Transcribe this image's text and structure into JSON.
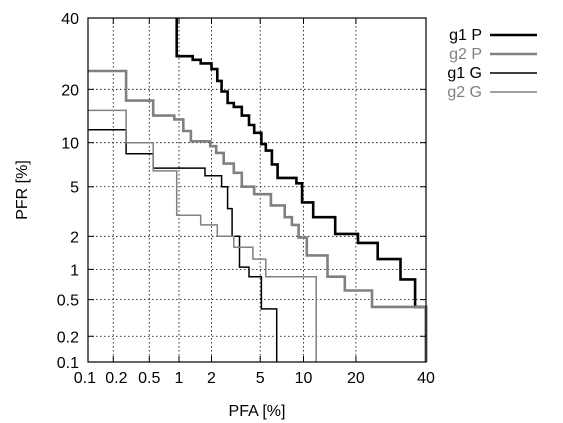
{
  "chart_data": {
    "type": "line",
    "xscale": "normal-deviate",
    "yscale": "normal-deviate",
    "xlabel": "PFA [%]",
    "ylabel": "PFR [%]",
    "xlim": [
      0.1,
      40
    ],
    "ylim": [
      0.1,
      40
    ],
    "xticks": [
      {
        "value": 0.1,
        "label": "0.1"
      },
      {
        "value": 0.2,
        "label": "0.2"
      },
      {
        "value": 0.5,
        "label": "0.5"
      },
      {
        "value": 1,
        "label": "1"
      },
      {
        "value": 2,
        "label": "2"
      },
      {
        "value": 5,
        "label": "5"
      },
      {
        "value": 10,
        "label": "10"
      },
      {
        "value": 20,
        "label": "20"
      },
      {
        "value": 40,
        "label": "40"
      }
    ],
    "yticks": [
      {
        "value": 0.1,
        "label": "0.1"
      },
      {
        "value": 0.2,
        "label": "0.2"
      },
      {
        "value": 0.5,
        "label": "0.5"
      },
      {
        "value": 1,
        "label": "1"
      },
      {
        "value": 2,
        "label": "2"
      },
      {
        "value": 5,
        "label": "5"
      },
      {
        "value": 10,
        "label": "10"
      },
      {
        "value": 20,
        "label": "20"
      },
      {
        "value": 40,
        "label": "40"
      }
    ],
    "grid": true,
    "legend_position": "outside-right",
    "series": [
      {
        "name": "g1 P",
        "color": "#000000",
        "weight": "thick",
        "points": [
          [
            0.95,
            40
          ],
          [
            0.95,
            28.5
          ],
          [
            1.35,
            28.5
          ],
          [
            1.35,
            27.5
          ],
          [
            1.6,
            27.5
          ],
          [
            1.6,
            26.5
          ],
          [
            2.0,
            26.5
          ],
          [
            2.0,
            25.0
          ],
          [
            2.25,
            25.0
          ],
          [
            2.25,
            22.0
          ],
          [
            2.45,
            22.0
          ],
          [
            2.45,
            19.5
          ],
          [
            2.75,
            19.5
          ],
          [
            2.75,
            17.0
          ],
          [
            3.1,
            17.0
          ],
          [
            3.1,
            16.2
          ],
          [
            3.6,
            16.2
          ],
          [
            3.6,
            14.5
          ],
          [
            4.1,
            14.5
          ],
          [
            4.1,
            12.8
          ],
          [
            4.5,
            12.8
          ],
          [
            4.5,
            11.5
          ],
          [
            5.1,
            11.5
          ],
          [
            5.1,
            9.8
          ],
          [
            5.5,
            9.8
          ],
          [
            5.5,
            8.9
          ],
          [
            6.1,
            8.9
          ],
          [
            6.1,
            7.2
          ],
          [
            6.7,
            7.2
          ],
          [
            6.7,
            5.8
          ],
          [
            9.0,
            5.8
          ],
          [
            9.0,
            5.3
          ],
          [
            9.8,
            5.3
          ],
          [
            9.8,
            3.8
          ],
          [
            11.5,
            3.8
          ],
          [
            11.5,
            2.9
          ],
          [
            15.5,
            2.9
          ],
          [
            15.5,
            2.1
          ],
          [
            20.5,
            2.1
          ],
          [
            20.5,
            1.75
          ],
          [
            25.5,
            1.75
          ],
          [
            25.5,
            1.25
          ],
          [
            32.0,
            1.25
          ],
          [
            32.0,
            0.8
          ],
          [
            36.5,
            0.8
          ],
          [
            36.5,
            0.42
          ],
          [
            40,
            0.42
          ],
          [
            40,
            0.1
          ]
        ]
      },
      {
        "name": "g2 P",
        "color": "#808080",
        "weight": "thick",
        "points": [
          [
            0.1,
            24.5
          ],
          [
            0.28,
            24.5
          ],
          [
            0.28,
            17.5
          ],
          [
            0.55,
            17.5
          ],
          [
            0.55,
            14.5
          ],
          [
            0.9,
            14.5
          ],
          [
            0.9,
            13.8
          ],
          [
            1.1,
            13.8
          ],
          [
            1.1,
            11.8
          ],
          [
            1.3,
            11.8
          ],
          [
            1.3,
            10.2
          ],
          [
            1.95,
            10.2
          ],
          [
            1.95,
            9.5
          ],
          [
            2.2,
            9.5
          ],
          [
            2.2,
            8.6
          ],
          [
            2.55,
            8.6
          ],
          [
            2.55,
            7.3
          ],
          [
            3.1,
            7.3
          ],
          [
            3.1,
            6.3
          ],
          [
            3.6,
            6.3
          ],
          [
            3.6,
            5.0
          ],
          [
            4.5,
            5.0
          ],
          [
            4.5,
            4.4
          ],
          [
            6.0,
            4.4
          ],
          [
            6.0,
            3.6
          ],
          [
            7.5,
            3.6
          ],
          [
            7.5,
            2.9
          ],
          [
            8.4,
            2.9
          ],
          [
            8.4,
            2.5
          ],
          [
            9.3,
            2.5
          ],
          [
            9.3,
            1.95
          ],
          [
            10.5,
            1.95
          ],
          [
            10.5,
            1.35
          ],
          [
            14.0,
            1.35
          ],
          [
            14.0,
            0.85
          ],
          [
            17.5,
            0.85
          ],
          [
            17.5,
            0.62
          ],
          [
            24.0,
            0.62
          ],
          [
            24.0,
            0.42
          ],
          [
            40,
            0.42
          ],
          [
            40,
            0.1
          ]
        ]
      },
      {
        "name": "g1 G",
        "color": "#000000",
        "weight": "thin",
        "points": [
          [
            0.1,
            12.0
          ],
          [
            0.28,
            12.0
          ],
          [
            0.28,
            8.5
          ],
          [
            0.55,
            8.5
          ],
          [
            0.55,
            6.8
          ],
          [
            1.75,
            6.8
          ],
          [
            1.75,
            6.0
          ],
          [
            2.45,
            6.0
          ],
          [
            2.45,
            5.0
          ],
          [
            2.75,
            5.0
          ],
          [
            2.75,
            3.4
          ],
          [
            3.0,
            3.4
          ],
          [
            3.0,
            2.0
          ],
          [
            3.45,
            2.0
          ],
          [
            3.45,
            1.05
          ],
          [
            4.1,
            1.05
          ],
          [
            4.1,
            0.85
          ],
          [
            5.1,
            0.85
          ],
          [
            5.1,
            0.4
          ],
          [
            6.6,
            0.4
          ],
          [
            6.6,
            0.1
          ]
        ]
      },
      {
        "name": "g2 G",
        "color": "#808080",
        "weight": "thin",
        "points": [
          [
            0.1,
            15.5
          ],
          [
            0.28,
            15.5
          ],
          [
            0.28,
            10.0
          ],
          [
            0.55,
            10.0
          ],
          [
            0.55,
            6.5
          ],
          [
            0.95,
            6.5
          ],
          [
            0.95,
            3.0
          ],
          [
            1.6,
            3.0
          ],
          [
            1.6,
            2.5
          ],
          [
            2.25,
            2.5
          ],
          [
            2.25,
            2.0
          ],
          [
            3.1,
            2.0
          ],
          [
            3.1,
            1.6
          ],
          [
            4.4,
            1.6
          ],
          [
            4.4,
            1.25
          ],
          [
            5.5,
            1.25
          ],
          [
            5.5,
            0.85
          ],
          [
            12.0,
            0.85
          ],
          [
            12.0,
            0.1
          ]
        ]
      }
    ]
  }
}
